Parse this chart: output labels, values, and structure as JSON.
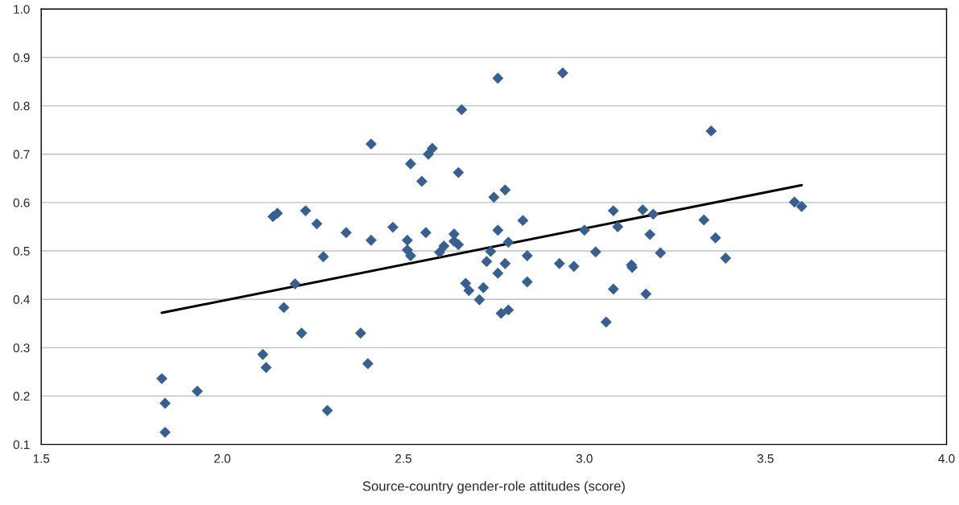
{
  "chart_data": {
    "type": "scatter",
    "xlabel": "Source-country gender-role attitudes (score)",
    "xlim": [
      1.5,
      4.0
    ],
    "xticks": [
      1.5,
      {
        "value": 2,
        "label": "2.0"
      },
      2.5,
      {
        "value": 3,
        "label": "3.0"
      },
      3.5,
      {
        "value": 4,
        "label": "4.0"
      }
    ],
    "ylim": [
      0.1,
      1.0
    ],
    "yticks": [
      0.1,
      0.2,
      0.3,
      0.4,
      0.5,
      0.6,
      0.7,
      0.8,
      0.9,
      {
        "value": 1,
        "label": "1.0"
      }
    ],
    "grid": "y",
    "series": [
      {
        "marker": "diamond",
        "color": "#366092",
        "x": [
          1.833,
          1.842,
          1.842,
          1.931,
          2.112,
          2.121,
          2.14,
          2.152,
          2.17,
          2.201,
          2.219,
          2.23,
          2.261,
          2.279,
          2.29,
          2.342,
          2.382,
          2.402,
          2.411,
          2.411,
          2.471,
          2.511,
          2.511,
          2.52,
          2.52,
          2.551,
          2.562,
          2.569,
          2.58,
          2.6,
          2.612,
          2.64,
          2.64,
          2.652,
          2.652,
          2.661,
          2.672,
          2.681,
          2.71,
          2.721,
          2.73,
          2.741,
          2.75,
          2.761,
          2.761,
          2.761,
          2.77,
          2.781,
          2.781,
          2.79,
          2.79,
          2.83,
          2.842,
          2.842,
          2.94,
          2.931,
          2.971,
          3.0,
          3.031,
          3.06,
          3.08,
          3.08,
          3.092,
          3.13,
          3.132,
          3.161,
          3.17,
          3.181,
          3.19,
          3.21,
          3.33,
          3.35,
          3.362,
          3.39,
          3.58,
          3.6
        ],
        "values": [
          0.236,
          0.185,
          0.125,
          0.21,
          0.286,
          0.259,
          0.571,
          0.578,
          0.383,
          0.432,
          0.33,
          0.583,
          0.556,
          0.488,
          0.17,
          0.538,
          0.33,
          0.267,
          0.721,
          0.522,
          0.549,
          0.522,
          0.502,
          0.49,
          0.68,
          0.644,
          0.538,
          0.7,
          0.712,
          0.497,
          0.51,
          0.535,
          0.52,
          0.513,
          0.662,
          0.792,
          0.433,
          0.418,
          0.399,
          0.424,
          0.478,
          0.499,
          0.611,
          0.857,
          0.543,
          0.454,
          0.371,
          0.626,
          0.474,
          0.518,
          0.378,
          0.563,
          0.49,
          0.436,
          0.868,
          0.474,
          0.468,
          0.543,
          0.498,
          0.353,
          0.583,
          0.421,
          0.55,
          0.471,
          0.466,
          0.585,
          0.411,
          0.534,
          0.576,
          0.496,
          0.564,
          0.748,
          0.527,
          0.485,
          0.601,
          0.592
        ]
      },
      {
        "type": "line",
        "color": "#000000",
        "x": [
          1.833,
          3.6
        ],
        "values": [
          0.372,
          0.636
        ]
      }
    ]
  }
}
